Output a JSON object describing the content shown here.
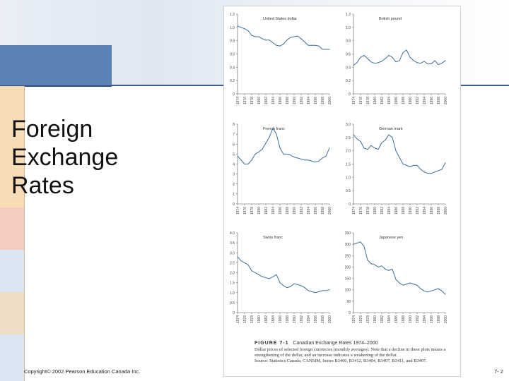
{
  "slide": {
    "title_lines": [
      "Foreign",
      "Exchange",
      "Rates"
    ],
    "footer_left": "Copyright© 2002 Pearson Education Canada Inc.",
    "footer_right": "7- 2",
    "colors": {
      "accent_blue": "#5b82b5",
      "line_color": "#3d6f9c"
    }
  },
  "figure": {
    "label": "FIGURE 7-1",
    "title": "Canadian Exchange Rates 1974–2000",
    "caption": "Dollar prices of selected foreign currencies (monthly averages). Note that a decline in these plots means a strengthening of the dollar, and an increase indicates a weakening of the dollar.",
    "source": "Source: Statistics Canada, CANSIM, Series B3400, B3412, B3404, B3407, B3411, and B3407."
  },
  "chart_data": [
    {
      "type": "line",
      "title": "United States dollar",
      "ylim": [
        0,
        1.2
      ],
      "yticks": [
        "0",
        "0.2",
        "0.4",
        "0.6",
        "0.8",
        "1.0",
        "1.2"
      ],
      "xticks": [
        "1974",
        "1976",
        "1978",
        "1980",
        "1982",
        "1984",
        "1986",
        "1988",
        "1990",
        "1992",
        "1994",
        "1996",
        "1998",
        "2000"
      ],
      "x": [
        1974,
        1975,
        1976,
        1977,
        1978,
        1979,
        1980,
        1981,
        1982,
        1983,
        1984,
        1985,
        1986,
        1987,
        1988,
        1989,
        1990,
        1991,
        1992,
        1993,
        1994,
        1995,
        1996,
        1997,
        1998,
        1999,
        2000
      ],
      "y": [
        1.02,
        1.0,
        0.98,
        0.95,
        0.88,
        0.86,
        0.86,
        0.83,
        0.81,
        0.81,
        0.77,
        0.73,
        0.72,
        0.75,
        0.81,
        0.85,
        0.86,
        0.87,
        0.83,
        0.78,
        0.73,
        0.73,
        0.73,
        0.72,
        0.67,
        0.67,
        0.67
      ]
    },
    {
      "type": "line",
      "title": "British pound",
      "ylim": [
        0,
        1.2
      ],
      "yticks": [
        "0",
        "0.2",
        "0.4",
        "0.6",
        "0.8",
        "1.0",
        "1.2"
      ],
      "xticks": [
        "1974",
        "1976",
        "1978",
        "1980",
        "1982",
        "1984",
        "1986",
        "1988",
        "1990",
        "1992",
        "1994",
        "1996",
        "1998",
        "2000"
      ],
      "x": [
        1974,
        1975,
        1976,
        1977,
        1978,
        1979,
        1980,
        1981,
        1982,
        1983,
        1984,
        1985,
        1986,
        1987,
        1988,
        1989,
        1990,
        1991,
        1992,
        1993,
        1994,
        1995,
        1996,
        1997,
        1998,
        1999,
        2000
      ],
      "y": [
        0.43,
        0.47,
        0.55,
        0.58,
        0.53,
        0.48,
        0.46,
        0.47,
        0.49,
        0.53,
        0.58,
        0.55,
        0.48,
        0.5,
        0.62,
        0.66,
        0.55,
        0.5,
        0.47,
        0.46,
        0.49,
        0.45,
        0.45,
        0.5,
        0.44,
        0.46,
        0.5
      ]
    },
    {
      "type": "line",
      "title": "French franc",
      "ylim": [
        0,
        8
      ],
      "yticks": [
        "0",
        "1",
        "2",
        "3",
        "4",
        "5",
        "6",
        "7",
        "8"
      ],
      "xticks": [
        "1974",
        "1976",
        "1978",
        "1980",
        "1982",
        "1984",
        "1986",
        "1988",
        "1990",
        "1992",
        "1994",
        "1996",
        "1998",
        "2000"
      ],
      "x": [
        1974,
        1975,
        1976,
        1977,
        1978,
        1979,
        1980,
        1981,
        1982,
        1983,
        1984,
        1985,
        1986,
        1987,
        1988,
        1989,
        1990,
        1991,
        1992,
        1993,
        1994,
        1995,
        1996,
        1997,
        1998,
        1999,
        2000
      ],
      "y": [
        4.8,
        4.4,
        4.0,
        4.0,
        4.4,
        5.0,
        5.2,
        5.5,
        6.1,
        6.7,
        7.6,
        7.0,
        5.6,
        5.0,
        5.0,
        4.9,
        4.7,
        4.6,
        4.5,
        4.4,
        4.4,
        4.3,
        4.2,
        4.3,
        4.6,
        4.8,
        5.6
      ]
    },
    {
      "type": "line",
      "title": "German mark",
      "ylim": [
        0,
        3.0
      ],
      "yticks": [
        "0",
        "0.5",
        "1.0",
        "1.5",
        "2.0",
        "2.5",
        "3.0"
      ],
      "xticks": [
        "1974",
        "1976",
        "1978",
        "1980",
        "1982",
        "1984",
        "1986",
        "1988",
        "1990",
        "1992",
        "1994",
        "1996",
        "1998",
        "2000"
      ],
      "x": [
        1974,
        1975,
        1976,
        1977,
        1978,
        1979,
        1980,
        1981,
        1982,
        1983,
        1984,
        1985,
        1986,
        1987,
        1988,
        1989,
        1990,
        1991,
        1992,
        1993,
        1994,
        1995,
        1996,
        1997,
        1998,
        1999,
        2000
      ],
      "y": [
        2.6,
        2.45,
        2.35,
        2.1,
        2.05,
        2.2,
        2.1,
        2.05,
        2.3,
        2.4,
        2.6,
        2.5,
        2.0,
        1.75,
        1.5,
        1.45,
        1.4,
        1.45,
        1.45,
        1.3,
        1.2,
        1.15,
        1.15,
        1.2,
        1.25,
        1.3,
        1.55
      ]
    },
    {
      "type": "line",
      "title": "Swiss franc",
      "ylim": [
        0,
        4.0
      ],
      "yticks": [
        "0",
        "0.5",
        "1.0",
        "1.5",
        "2.0",
        "2.5",
        "3.0",
        "3.5",
        "4.0"
      ],
      "xticks": [
        "1974",
        "1976",
        "1978",
        "1980",
        "1982",
        "1984",
        "1986",
        "1988",
        "1990",
        "1992",
        "1994",
        "1996",
        "1998",
        "2000"
      ],
      "x": [
        1974,
        1975,
        1976,
        1977,
        1978,
        1979,
        1980,
        1981,
        1982,
        1983,
        1984,
        1985,
        1986,
        1987,
        1988,
        1989,
        1990,
        1991,
        1992,
        1993,
        1994,
        1995,
        1996,
        1997,
        1998,
        1999,
        2000
      ],
      "y": [
        2.8,
        2.6,
        2.5,
        2.4,
        2.1,
        2.0,
        1.9,
        1.8,
        1.75,
        1.7,
        1.8,
        1.9,
        1.5,
        1.35,
        1.25,
        1.3,
        1.45,
        1.4,
        1.35,
        1.25,
        1.1,
        1.05,
        1.0,
        1.05,
        1.1,
        1.1,
        1.15
      ]
    },
    {
      "type": "line",
      "title": "Japanese yen",
      "ylim": [
        0,
        350
      ],
      "yticks": [
        "0",
        "50",
        "100",
        "150",
        "200",
        "250",
        "300",
        "350"
      ],
      "xticks": [
        "1974",
        "1976",
        "1978",
        "1980",
        "1982",
        "1984",
        "1986",
        "1988",
        "1990",
        "1992",
        "1994",
        "1996",
        "1998",
        "2000"
      ],
      "x": [
        1974,
        1975,
        1976,
        1977,
        1978,
        1979,
        1980,
        1981,
        1982,
        1983,
        1984,
        1985,
        1986,
        1987,
        1988,
        1989,
        1990,
        1991,
        1992,
        1993,
        1994,
        1995,
        1996,
        1997,
        1998,
        1999,
        2000
      ],
      "y": [
        300,
        305,
        310,
        290,
        230,
        215,
        210,
        200,
        205,
        190,
        185,
        190,
        145,
        130,
        120,
        125,
        130,
        125,
        120,
        105,
        95,
        90,
        95,
        100,
        105,
        95,
        80
      ]
    }
  ]
}
